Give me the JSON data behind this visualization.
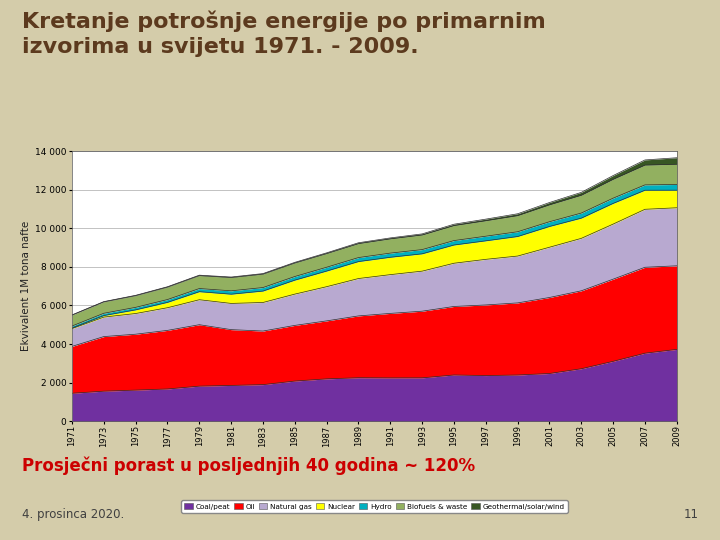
{
  "title": "Kretanje potrošnje energije po primarnim\nizvorima u svijetu 1971. - 2009.",
  "ylabel": "Ekvivalent 1M tona nafte",
  "subtitle": "Prosječni porast u posljednjih 40 godina ~ 120%",
  "footnote": "4. prosinca 2020.",
  "page_number": "11",
  "years": [
    1971,
    1973,
    1975,
    1977,
    1979,
    1981,
    1983,
    1985,
    1987,
    1989,
    1991,
    1993,
    1995,
    1997,
    1999,
    2001,
    2003,
    2005,
    2007,
    2009
  ],
  "series": {
    "Coal/peat": [
      1449,
      1558,
      1613,
      1672,
      1819,
      1855,
      1897,
      2082,
      2196,
      2254,
      2246,
      2249,
      2397,
      2366,
      2396,
      2474,
      2721,
      3105,
      3527,
      3724
    ],
    "Oil": [
      2430,
      2830,
      2898,
      3037,
      3185,
      2893,
      2778,
      2886,
      3006,
      3206,
      3344,
      3455,
      3553,
      3662,
      3738,
      3941,
      4040,
      4260,
      4455,
      4334
    ],
    "Natural gas": [
      924,
      1010,
      1073,
      1175,
      1295,
      1359,
      1481,
      1622,
      1773,
      1938,
      2010,
      2077,
      2241,
      2365,
      2430,
      2606,
      2720,
      2856,
      3006,
      3009
    ],
    "Nuclear": [
      29,
      80,
      189,
      277,
      417,
      479,
      592,
      724,
      810,
      879,
      900,
      898,
      945,
      960,
      1012,
      1076,
      1048,
      1073,
      989,
      912
    ],
    "Hydro": [
      104,
      119,
      131,
      148,
      163,
      175,
      183,
      189,
      199,
      208,
      216,
      220,
      230,
      240,
      248,
      247,
      264,
      271,
      277,
      295
    ],
    "Biofuels & waste": [
      563,
      590,
      607,
      644,
      671,
      690,
      697,
      703,
      711,
      726,
      741,
      759,
      780,
      803,
      836,
      876,
      924,
      979,
      1028,
      1049
    ],
    "Geothermal/solar/wind": [
      12,
      14,
      16,
      19,
      22,
      25,
      27,
      31,
      35,
      42,
      47,
      54,
      68,
      82,
      96,
      119,
      149,
      193,
      265,
      338
    ]
  },
  "colors": {
    "Coal/peat": "#7030A0",
    "Oil": "#FF0000",
    "Natural gas": "#B8A9D0",
    "Nuclear": "#FFFF00",
    "Hydro": "#00B0C0",
    "Biofuels & waste": "#92B060",
    "Geothermal/solar/wind": "#375623"
  },
  "series_order": [
    "Coal/peat",
    "Oil",
    "Natural gas",
    "Nuclear",
    "Hydro",
    "Biofuels & waste",
    "Geothermal/solar/wind"
  ],
  "legend_labels": [
    "Coal/peat",
    "Oil",
    "Natural gas",
    "Nuclear",
    "Hydro",
    "Biofuels & waste",
    "Geothermal/solar/wind"
  ],
  "ylim": [
    0,
    14000
  ],
  "yticks": [
    0,
    2000,
    4000,
    6000,
    8000,
    10000,
    12000,
    14000
  ],
  "bg_slide": "#D4CCAA",
  "bg_chart_outer": "#C8D4B8",
  "bg_chart": "#FFFFFF",
  "title_color": "#5C3A1E",
  "subtitle_color": "#CC0000",
  "footnote_color": "#404040"
}
